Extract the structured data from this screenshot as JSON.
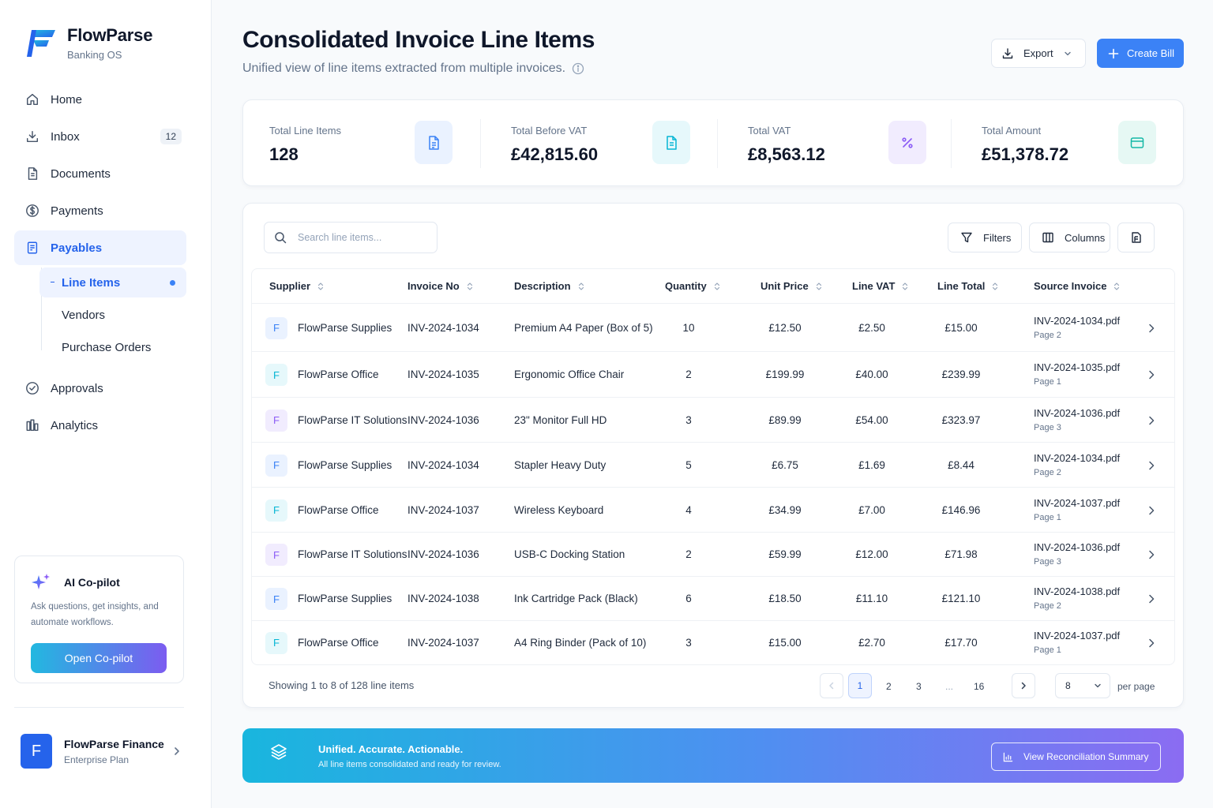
{
  "brand": {
    "name": "FlowParse",
    "sub": "Banking OS"
  },
  "nav": {
    "home": "Home",
    "inbox": "Inbox",
    "inbox_count": "12",
    "documents": "Documents",
    "payments": "Payments",
    "payables": "Payables",
    "sub": {
      "line_items": "Line Items",
      "vendors": "Vendors",
      "purchase_orders": "Purchase Orders"
    },
    "approvals": "Approvals",
    "analytics": "Analytics"
  },
  "copilot": {
    "title": "AI Co-pilot",
    "text": "Ask questions, get insights, and automate workflows.",
    "button": "Open Co-pilot"
  },
  "account": {
    "initial": "F",
    "name": "FlowParse Finance",
    "plan": "Enterprise Plan"
  },
  "header": {
    "title": "Consolidated Invoice Line Items",
    "subtitle": "Unified view of line items extracted from multiple invoices.",
    "export_label": "Export",
    "create_label": "Create Bill"
  },
  "stats": [
    {
      "label": "Total Line Items",
      "value": "128",
      "icon": "file-list-icon",
      "color": "#3b82f6",
      "bg": "#eaf2ff"
    },
    {
      "label": "Total Before VAT",
      "value": "£42,815.60",
      "icon": "document-icon",
      "color": "#06b6d4",
      "bg": "#e6f8fb"
    },
    {
      "label": "Total VAT",
      "value": "£8,563.12",
      "icon": "percent-icon",
      "color": "#8b5cf6",
      "bg": "#f1ecfe"
    },
    {
      "label": "Total Amount",
      "value": "£51,378.72",
      "icon": "wallet-icon",
      "color": "#14b8a6",
      "bg": "#e6f8f4"
    }
  ],
  "toolbar": {
    "search_placeholder": "Search line items...",
    "filters_label": "Filters",
    "columns_label": "Columns"
  },
  "table": {
    "columns": [
      "Supplier",
      "Invoice No",
      "Description",
      "Quantity",
      "Unit Price",
      "Line VAT",
      "Line Total",
      "Source Invoice"
    ],
    "rows": [
      {
        "initial": "F",
        "supplier": "FlowParse Supplies",
        "invoice": "INV-2024-1034",
        "description": "Premium A4 Paper (Box of 5)",
        "qty": "10",
        "unit": "£12.50",
        "vat": "£2.50",
        "total": "£15.00",
        "source": "INV-2024-1034.pdf",
        "page": "Page 2",
        "av_color": "#3b82f6",
        "av_bg": "#eaf2ff"
      },
      {
        "initial": "F",
        "supplier": "FlowParse Office",
        "invoice": "INV-2024-1035",
        "description": "Ergonomic Office Chair",
        "qty": "2",
        "unit": "£199.99",
        "vat": "£40.00",
        "total": "£239.99",
        "source": "INV-2024-1035.pdf",
        "page": "Page 1",
        "av_color": "#06b6d4",
        "av_bg": "#e6f8fb"
      },
      {
        "initial": "F",
        "supplier": "FlowParse IT Solutions",
        "invoice": "INV-2024-1036",
        "description": "23\" Monitor Full HD",
        "qty": "3",
        "unit": "£89.99",
        "vat": "£54.00",
        "total": "£323.97",
        "source": "INV-2024-1036.pdf",
        "page": "Page 3",
        "av_color": "#8b5cf6",
        "av_bg": "#f1ecfe"
      },
      {
        "initial": "F",
        "supplier": "FlowParse Supplies",
        "invoice": "INV-2024-1034",
        "description": "Stapler Heavy Duty",
        "qty": "5",
        "unit": "£6.75",
        "vat": "£1.69",
        "total": "£8.44",
        "source": "INV-2024-1034.pdf",
        "page": "Page 2",
        "av_color": "#3b82f6",
        "av_bg": "#eaf2ff"
      },
      {
        "initial": "F",
        "supplier": "FlowParse Office",
        "invoice": "INV-2024-1037",
        "description": "Wireless Keyboard",
        "qty": "4",
        "unit": "£34.99",
        "vat": "£7.00",
        "total": "£146.96",
        "source": "INV-2024-1037.pdf",
        "page": "Page 1",
        "av_color": "#06b6d4",
        "av_bg": "#e6f8fb"
      },
      {
        "initial": "F",
        "supplier": "FlowParse IT Solutions",
        "invoice": "INV-2024-1036",
        "description": "USB-C Docking Station",
        "qty": "2",
        "unit": "£59.99",
        "vat": "£12.00",
        "total": "£71.98",
        "source": "INV-2024-1036.pdf",
        "page": "Page 3",
        "av_color": "#8b5cf6",
        "av_bg": "#f1ecfe"
      },
      {
        "initial": "F",
        "supplier": "FlowParse Supplies",
        "invoice": "INV-2024-1038",
        "description": "Ink Cartridge Pack (Black)",
        "qty": "6",
        "unit": "£18.50",
        "vat": "£11.10",
        "total": "£121.10",
        "source": "INV-2024-1038.pdf",
        "page": "Page 2",
        "av_color": "#3b82f6",
        "av_bg": "#eaf2ff"
      },
      {
        "initial": "F",
        "supplier": "FlowParse Office",
        "invoice": "INV-2024-1037",
        "description": "A4 Ring Binder (Pack of 10)",
        "qty": "3",
        "unit": "£15.00",
        "vat": "£2.70",
        "total": "£17.70",
        "source": "INV-2024-1037.pdf",
        "page": "Page 1",
        "av_color": "#06b6d4",
        "av_bg": "#e6f8fb"
      }
    ]
  },
  "pagination": {
    "showing": "Showing 1 to 8 of 128 line items",
    "pages": [
      "1",
      "2",
      "3",
      "...",
      "16"
    ],
    "current": "1",
    "per_page": "8",
    "per_page_label": "per page"
  },
  "banner": {
    "title": "Unified. Accurate. Actionable.",
    "text": "All line items consolidated and ready for review.",
    "button": "View Reconciliation Summary"
  }
}
